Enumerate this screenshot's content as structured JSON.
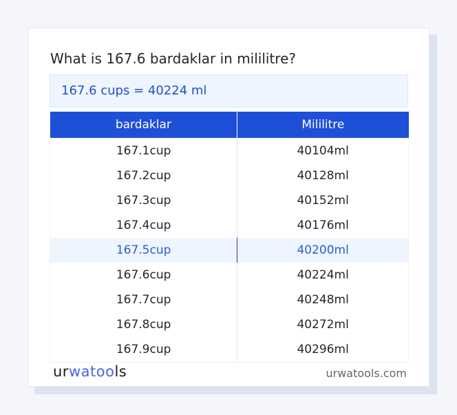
{
  "title": "What is 167.6 bardaklar in mililitre?",
  "summary": "167.6 cups = 40224 ml",
  "table": {
    "headers": [
      "bardaklar",
      "Mililitre"
    ],
    "rows": [
      [
        "167.1cup",
        "40104ml"
      ],
      [
        "167.2cup",
        "40128ml"
      ],
      [
        "167.3cup",
        "40152ml"
      ],
      [
        "167.4cup",
        "40176ml"
      ],
      [
        "167.5cup",
        "40200ml"
      ],
      [
        "167.6cup",
        "40224ml"
      ],
      [
        "167.7cup",
        "40248ml"
      ],
      [
        "167.8cup",
        "40272ml"
      ],
      [
        "167.9cup",
        "40296ml"
      ]
    ],
    "highlighted_row": 4
  },
  "logo": {
    "part1": "ur",
    "part2": "wa",
    "part3": "too",
    "part4": "ls"
  },
  "site": "urwatools.com",
  "colors": {
    "accent": "#1d4fd8",
    "highlight_bg": "#eef5fe"
  }
}
